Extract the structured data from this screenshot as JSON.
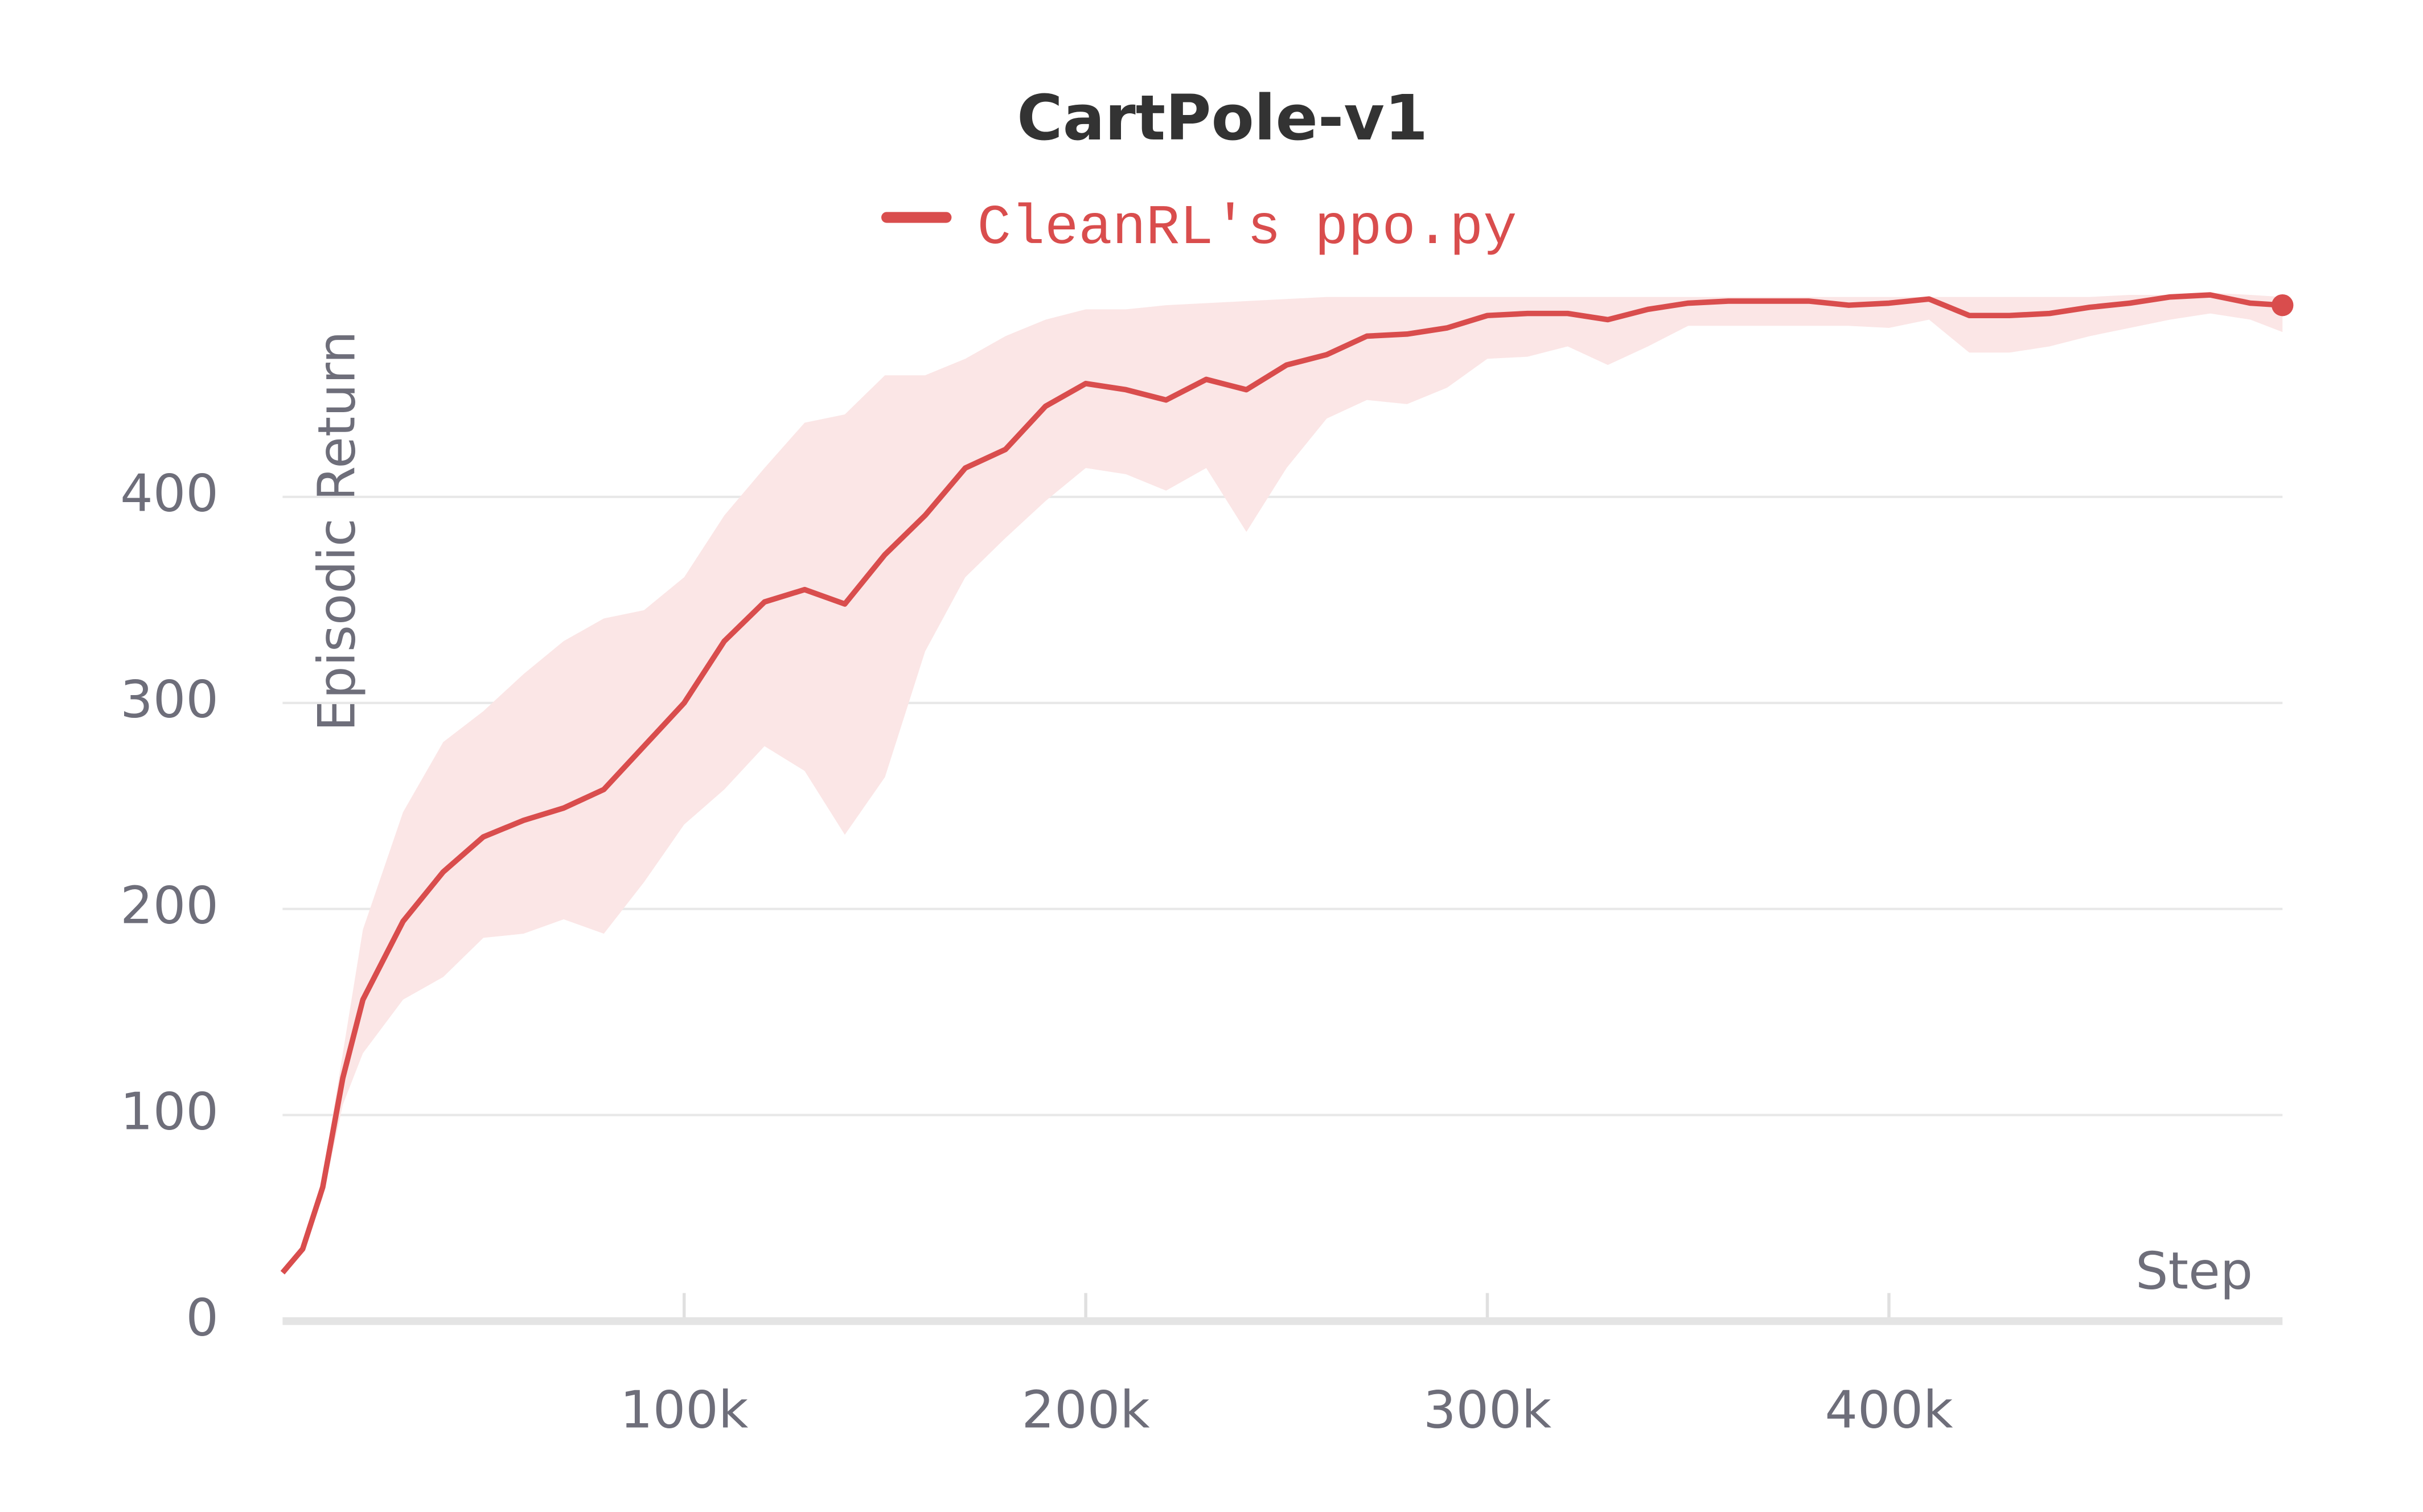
{
  "chart_data": {
    "type": "line",
    "title": "CartPole-v1",
    "xlabel": "Step",
    "ylabel": "Episodic Return",
    "x": [
      0,
      5000,
      10000,
      15000,
      20000,
      30000,
      40000,
      50000,
      60000,
      70000,
      80000,
      90000,
      100000,
      110000,
      120000,
      130000,
      140000,
      150000,
      160000,
      170000,
      180000,
      190000,
      200000,
      210000,
      220000,
      230000,
      240000,
      250000,
      260000,
      270000,
      280000,
      290000,
      300000,
      310000,
      320000,
      330000,
      340000,
      350000,
      360000,
      370000,
      380000,
      390000,
      400000,
      410000,
      420000,
      430000,
      440000,
      450000,
      460000,
      470000,
      480000,
      490000,
      498000
    ],
    "series": [
      {
        "name": "CleanRL's ppo.py",
        "color": "#d94d4d",
        "band_color": "#fbe6e6",
        "values": [
          23.5,
          35,
          65,
          118,
          156,
          194,
          218,
          235,
          243,
          249,
          258,
          279,
          300,
          330,
          349,
          355,
          348,
          372,
          391,
          414,
          423,
          444,
          455,
          452,
          447,
          457,
          452,
          464,
          469,
          478,
          479,
          482,
          488,
          489,
          489,
          486,
          491,
          494,
          495,
          495,
          495,
          493,
          494,
          496,
          488,
          488,
          489,
          492,
          494,
          497,
          498,
          494,
          493
        ],
        "upper": [
          24,
          36,
          70,
          130,
          190,
          247,
          281,
          296,
          314,
          330,
          341,
          345,
          361,
          391,
          414,
          436,
          440,
          459,
          459,
          467,
          478,
          486,
          491,
          491,
          493,
          494,
          495,
          496,
          497,
          497,
          497,
          497,
          497,
          497,
          497,
          497,
          497,
          497,
          497,
          497,
          497,
          497,
          497,
          497,
          497,
          497,
          497,
          497,
          498,
          498,
          499,
          498,
          497
        ],
        "lower": [
          23,
          34,
          60,
          105,
          130,
          156,
          167,
          186,
          188,
          195,
          188,
          213,
          241,
          258,
          279,
          267,
          236,
          264,
          325,
          361,
          380,
          398,
          414,
          411,
          403,
          414,
          383,
          414,
          438,
          447,
          445,
          453,
          467,
          468,
          473,
          464,
          473,
          483,
          483,
          483,
          483,
          483,
          482,
          486,
          470,
          470,
          473,
          478,
          482,
          486,
          489,
          486,
          480
        ]
      }
    ],
    "xlim": [
      0,
      498000
    ],
    "ylim": [
      0,
      500
    ],
    "xticks": [
      {
        "value": 100000,
        "label": "100k"
      },
      {
        "value": 200000,
        "label": "200k"
      },
      {
        "value": 300000,
        "label": "300k"
      },
      {
        "value": 400000,
        "label": "400k"
      }
    ],
    "yticks": [
      0,
      100,
      200,
      300,
      400
    ],
    "grid": true
  }
}
